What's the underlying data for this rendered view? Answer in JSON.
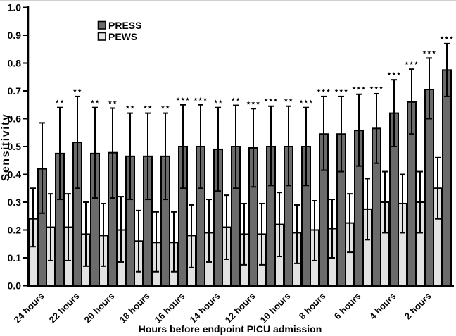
{
  "chart_data": {
    "type": "bar",
    "title": "",
    "xlabel": "Hours before endpoint PICU admission",
    "ylabel": "Sensitivity",
    "ylim": [
      0,
      1.0
    ],
    "ytick_step": 0.1,
    "grid": false,
    "legend_position": "top-left-inside",
    "bar_order_within_pair": [
      "PEWS",
      "PNG-left is PEWS (light), right is PRESS (dark)"
    ],
    "error_bars": "vertical lines with caps, upper and lower",
    "significance_note": "asterisk markers above PRESS error bars",
    "y_tick_labels": [
      "0.0",
      "0.1",
      "0.2",
      "0.3",
      "0.4",
      "0.5",
      "0.6",
      "0.7",
      "0.8",
      "0.9",
      "1.0"
    ],
    "x_tick_labels": [
      "24 hours",
      "22 hours",
      "20 hours",
      "18 hours",
      "16 hours",
      "14 hours",
      "12 hours",
      "10 hours",
      "8 hours",
      "6 hours",
      "4 hours",
      "2 hours"
    ],
    "legend": {
      "items": [
        {
          "label": "PRESS",
          "color": "#6b6b6b"
        },
        {
          "label": "PEWS",
          "color": "#e2e2e2"
        }
      ]
    },
    "points": [
      {
        "hour": 24,
        "pews": 0.24,
        "pews_ci": [
          0.14,
          0.35
        ],
        "press": 0.42,
        "press_ci": [
          0.26,
          0.585
        ],
        "sig": ""
      },
      {
        "hour": 23,
        "pews": 0.21,
        "pews_ci": [
          0.09,
          0.33
        ],
        "press": 0.475,
        "press_ci": [
          0.31,
          0.64
        ],
        "sig": "**"
      },
      {
        "hour": 22,
        "pews": 0.21,
        "pews_ci": [
          0.09,
          0.33
        ],
        "press": 0.515,
        "press_ci": [
          0.35,
          0.68
        ],
        "sig": "**"
      },
      {
        "hour": 21,
        "pews": 0.185,
        "pews_ci": [
          0.07,
          0.3
        ],
        "press": 0.475,
        "press_ci": [
          0.315,
          0.64
        ],
        "sig": "**"
      },
      {
        "hour": 20,
        "pews": 0.18,
        "pews_ci": [
          0.07,
          0.295
        ],
        "press": 0.478,
        "press_ci": [
          0.315,
          0.638
        ],
        "sig": "**"
      },
      {
        "hour": 19,
        "pews": 0.2,
        "pews_ci": [
          0.085,
          0.32
        ],
        "press": 0.465,
        "press_ci": [
          0.31,
          0.62
        ],
        "sig": "**"
      },
      {
        "hour": 18,
        "pews": 0.16,
        "pews_ci": [
          0.05,
          0.27
        ],
        "press": 0.465,
        "press_ci": [
          0.31,
          0.62
        ],
        "sig": "**"
      },
      {
        "hour": 17,
        "pews": 0.155,
        "pews_ci": [
          0.05,
          0.265
        ],
        "press": 0.465,
        "press_ci": [
          0.31,
          0.62
        ],
        "sig": "**"
      },
      {
        "hour": 16,
        "pews": 0.155,
        "pews_ci": [
          0.05,
          0.265
        ],
        "press": 0.5,
        "press_ci": [
          0.35,
          0.65
        ],
        "sig": "***"
      },
      {
        "hour": 15,
        "pews": 0.18,
        "pews_ci": [
          0.065,
          0.29
        ],
        "press": 0.5,
        "press_ci": [
          0.35,
          0.65
        ],
        "sig": "***"
      },
      {
        "hour": 14,
        "pews": 0.19,
        "pews_ci": [
          0.085,
          0.31
        ],
        "press": 0.49,
        "press_ci": [
          0.34,
          0.64
        ],
        "sig": "**"
      },
      {
        "hour": 13,
        "pews": 0.21,
        "pews_ci": [
          0.095,
          0.325
        ],
        "press": 0.5,
        "press_ci": [
          0.35,
          0.648
        ],
        "sig": "**"
      },
      {
        "hour": 12,
        "pews": 0.185,
        "pews_ci": [
          0.075,
          0.295
        ],
        "press": 0.495,
        "press_ci": [
          0.355,
          0.636
        ],
        "sig": "***"
      },
      {
        "hour": 11,
        "pews": 0.185,
        "pews_ci": [
          0.075,
          0.295
        ],
        "press": 0.5,
        "press_ci": [
          0.36,
          0.645
        ],
        "sig": "***"
      },
      {
        "hour": 10,
        "pews": 0.22,
        "pews_ci": [
          0.105,
          0.335
        ],
        "press": 0.5,
        "press_ci": [
          0.36,
          0.645
        ],
        "sig": "**"
      },
      {
        "hour": 9,
        "pews": 0.19,
        "pews_ci": [
          0.08,
          0.29
        ],
        "press": 0.5,
        "press_ci": [
          0.36,
          0.64
        ],
        "sig": "***"
      },
      {
        "hour": 8,
        "pews": 0.2,
        "pews_ci": [
          0.09,
          0.305
        ],
        "press": 0.545,
        "press_ci": [
          0.415,
          0.68
        ],
        "sig": "***"
      },
      {
        "hour": 7,
        "pews": 0.205,
        "pews_ci": [
          0.1,
          0.31
        ],
        "press": 0.545,
        "press_ci": [
          0.41,
          0.68
        ],
        "sig": "***"
      },
      {
        "hour": 6,
        "pews": 0.225,
        "pews_ci": [
          0.12,
          0.33
        ],
        "press": 0.558,
        "press_ci": [
          0.43,
          0.688
        ],
        "sig": "***"
      },
      {
        "hour": 5,
        "pews": 0.275,
        "pews_ci": [
          0.165,
          0.385
        ],
        "press": 0.565,
        "press_ci": [
          0.44,
          0.69
        ],
        "sig": "***"
      },
      {
        "hour": 4,
        "pews": 0.3,
        "pews_ci": [
          0.19,
          0.41
        ],
        "press": 0.62,
        "press_ci": [
          0.5,
          0.74
        ],
        "sig": "***"
      },
      {
        "hour": 3,
        "pews": 0.295,
        "pews_ci": [
          0.19,
          0.4
        ],
        "press": 0.66,
        "press_ci": [
          0.545,
          0.778
        ],
        "sig": "***"
      },
      {
        "hour": 2,
        "pews": 0.3,
        "pews_ci": [
          0.19,
          0.41
        ],
        "press": 0.705,
        "press_ci": [
          0.6,
          0.818
        ],
        "sig": "***"
      },
      {
        "hour": 1,
        "pews": 0.35,
        "pews_ci": [
          0.24,
          0.46
        ],
        "press": 0.775,
        "press_ci": [
          0.68,
          0.87
        ],
        "sig": "***"
      }
    ]
  }
}
